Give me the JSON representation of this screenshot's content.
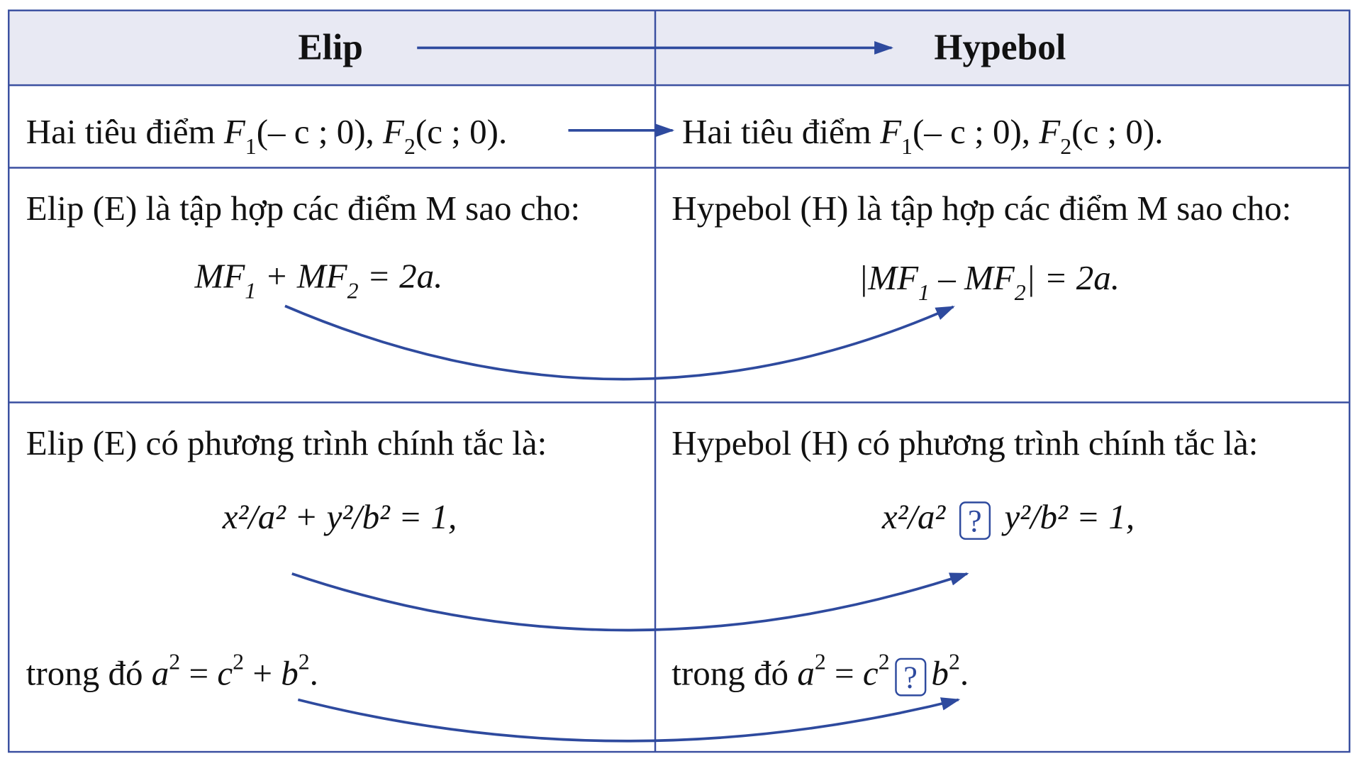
{
  "colors": {
    "border": "#3a4fa0",
    "arrow": "#2e4a9e",
    "header_bg": "#e8e9f3"
  },
  "header": {
    "left": "Elip",
    "right": "Hypebol"
  },
  "row1": {
    "left_text": "Hai tiêu điểm",
    "right_text": "Hai tiêu điểm",
    "foci_1": "(– c ; 0),",
    "foci_2": "(c ; 0)."
  },
  "row2": {
    "left_text": "Elip (E) là tập hợp các điểm M sao cho:",
    "right_text": "Hypebol (H) là tập hợp các điểm M sao cho:",
    "left_formula": "MF1 + MF2 = 2a.",
    "right_formula": "|MF1 – MF2| = 2a."
  },
  "row3": {
    "left_text": "Elip (E) có phương trình chính tắc là:",
    "right_text": "Hypebol (H) có phương trình chính tắc là:",
    "left_equation": "x²/a² + y²/b² = 1,",
    "right_equation": "x²/a² ? y²/b² = 1,",
    "left_relation": "trong đó a² = c² + b².",
    "right_relation": "trong đó a² = c² ? b².",
    "placeholder": "?",
    "trong_do": "trong đó"
  }
}
